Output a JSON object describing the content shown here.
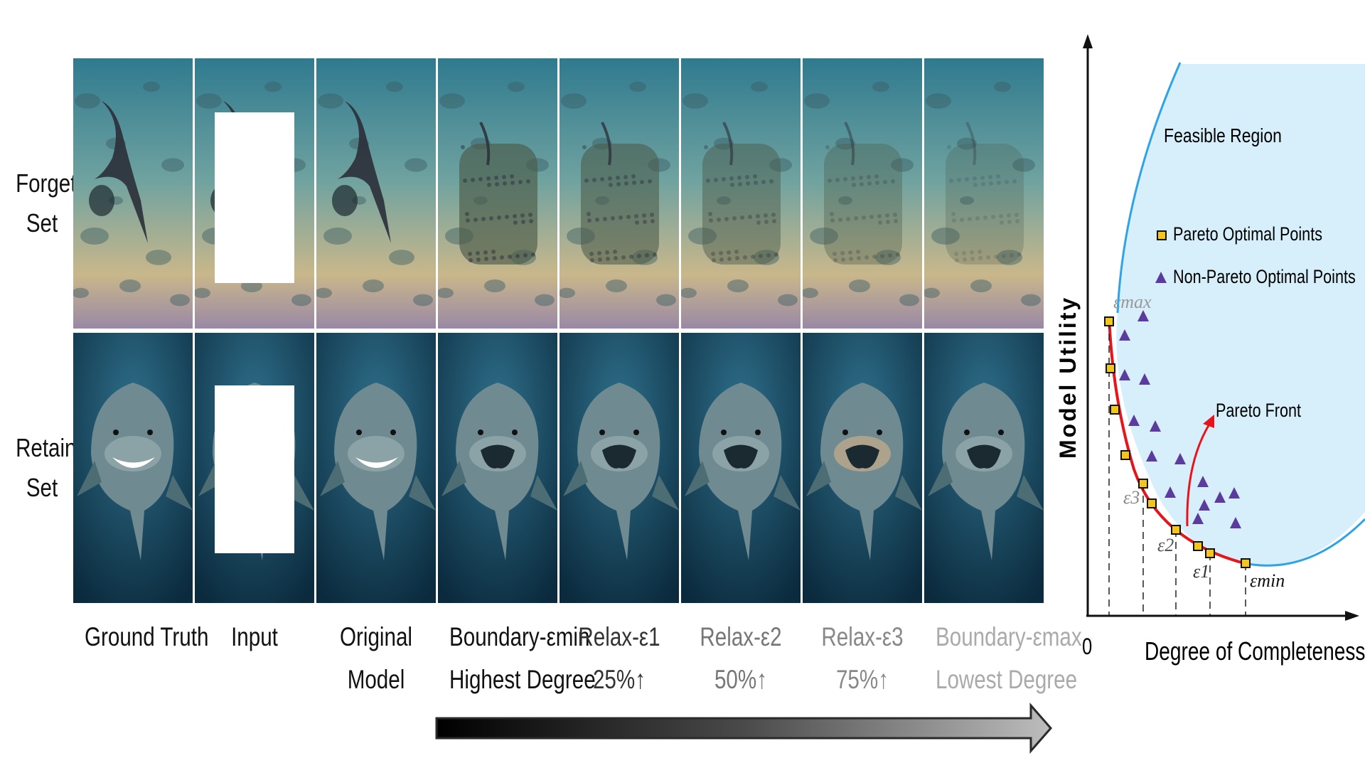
{
  "rows": [
    {
      "label_line1": "Forget",
      "label_line2": "Set"
    },
    {
      "label_line1": "Retain",
      "label_line2": "Set"
    }
  ],
  "columns": [
    {
      "line1": "Ground Truth",
      "line2": "",
      "color": "#111111"
    },
    {
      "line1": "Input",
      "line2": "",
      "color": "#111111"
    },
    {
      "line1": "Original",
      "line2": "Model",
      "color": "#111111"
    },
    {
      "line1": "Boundary-εmin",
      "line2": "Highest Degree",
      "color": "#111111"
    },
    {
      "line1": "Relax-ε1",
      "line2": "25%↑",
      "color": "#333333"
    },
    {
      "line1": "Relax-ε2",
      "line2": "50%↑",
      "color": "#777777"
    },
    {
      "line1": "Relax-ε3",
      "line2": "75%↑",
      "color": "#888888"
    },
    {
      "line1": "Boundary-εmax",
      "line2": "Lowest Degree",
      "color": "#aaaaaa"
    }
  ],
  "plot": {
    "y_axis_label": "Model Utility",
    "x_axis_label": "Degree of Completeness",
    "origin_label": "0",
    "region_label": "Feasible Region",
    "legend": [
      {
        "label": "Pareto Optimal Points",
        "marker": "square",
        "color": "#f5c518"
      },
      {
        "label": "Non-Pareto Optimal Points",
        "marker": "triangle",
        "color": "#5b3c9e"
      }
    ],
    "front_label": "Pareto Front",
    "eps_labels": {
      "max": "εmax",
      "e3": "ε3",
      "e2": "ε2",
      "e1": "ε1",
      "min": "εmin"
    },
    "colors": {
      "region": "#d6effb",
      "boundary": "#2ea3e6",
      "front": "#e8141b",
      "arrow": "#e8141b"
    }
  }
}
